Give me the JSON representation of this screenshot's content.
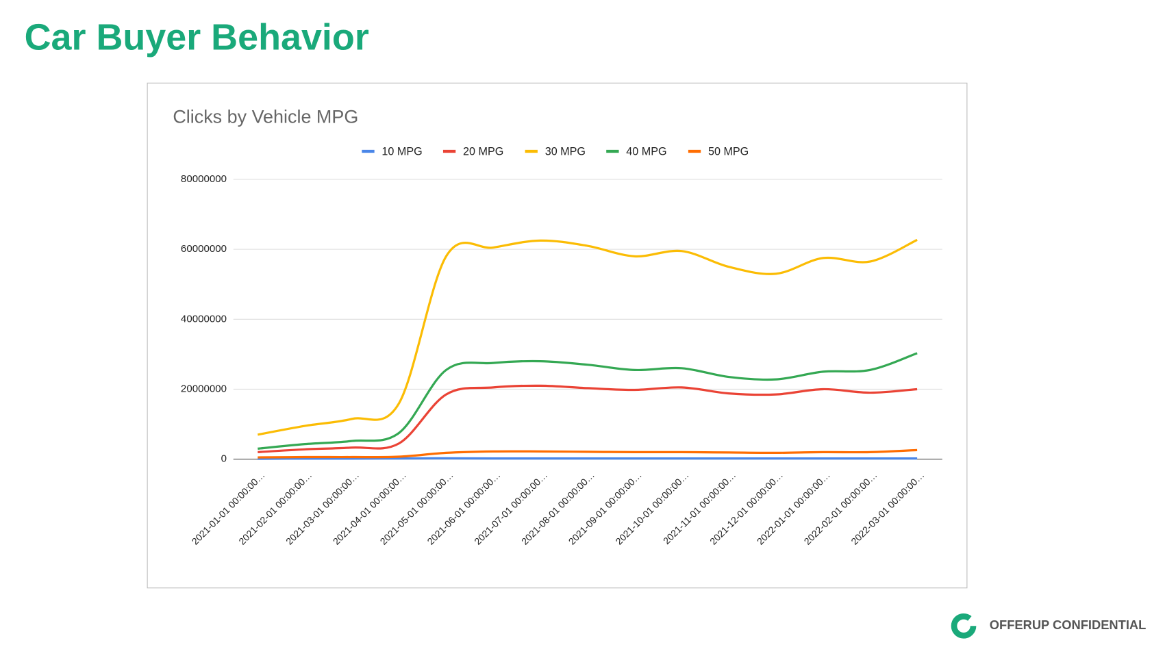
{
  "header": {
    "title": "Car Buyer Behavior"
  },
  "footer": {
    "text": "OFFERUP CONFIDENTIAL"
  },
  "chart_data": {
    "type": "line",
    "title": "Clicks by Vehicle MPG",
    "categories": [
      "2021-01-01 00:00:00…",
      "2021-02-01 00:00:00…",
      "2021-03-01 00:00:00…",
      "2021-04-01 00:00:00…",
      "2021-05-01 00:00:00…",
      "2021-06-01 00:00:00…",
      "2021-07-01 00:00:00…",
      "2021-08-01 00:00:00…",
      "2021-09-01 00:00:00…",
      "2021-10-01 00:00:00…",
      "2021-11-01 00:00:00…",
      "2021-12-01 00:00:00…",
      "2022-01-01 00:00:00…",
      "2022-02-01 00:00:00…",
      "2022-03-01 00:00:00…"
    ],
    "series": [
      {
        "name": "10 MPG",
        "color": "#4a86e8",
        "values": [
          100000,
          150000,
          150000,
          200000,
          250000,
          200000,
          200000,
          200000,
          200000,
          200000,
          200000,
          200000,
          200000,
          200000,
          200000
        ]
      },
      {
        "name": "20 MPG",
        "color": "#ea4335",
        "values": [
          2000000,
          2800000,
          3300000,
          4500000,
          18500000,
          20500000,
          21000000,
          20300000,
          19800000,
          20500000,
          18800000,
          18500000,
          20000000,
          19000000,
          20000000
        ]
      },
      {
        "name": "30 MPG",
        "color": "#fbbc04",
        "values": [
          7000000,
          9500000,
          11500000,
          16000000,
          58000000,
          60500000,
          62500000,
          61000000,
          58000000,
          59500000,
          55000000,
          53000000,
          57500000,
          56500000,
          62700000
        ]
      },
      {
        "name": "40 MPG",
        "color": "#34a853",
        "values": [
          3000000,
          4300000,
          5200000,
          7500000,
          25500000,
          27500000,
          28000000,
          27000000,
          25500000,
          26000000,
          23500000,
          22800000,
          25000000,
          25500000,
          30300000
        ]
      },
      {
        "name": "50 MPG",
        "color": "#ff6d01",
        "values": [
          500000,
          600000,
          600000,
          700000,
          1800000,
          2200000,
          2200000,
          2100000,
          2000000,
          2000000,
          1900000,
          1800000,
          2000000,
          2000000,
          2600000
        ]
      }
    ],
    "ylim": [
      0,
      80000000
    ],
    "yticks": [
      0,
      20000000,
      40000000,
      60000000,
      80000000
    ],
    "grid": true,
    "legend": "top"
  }
}
